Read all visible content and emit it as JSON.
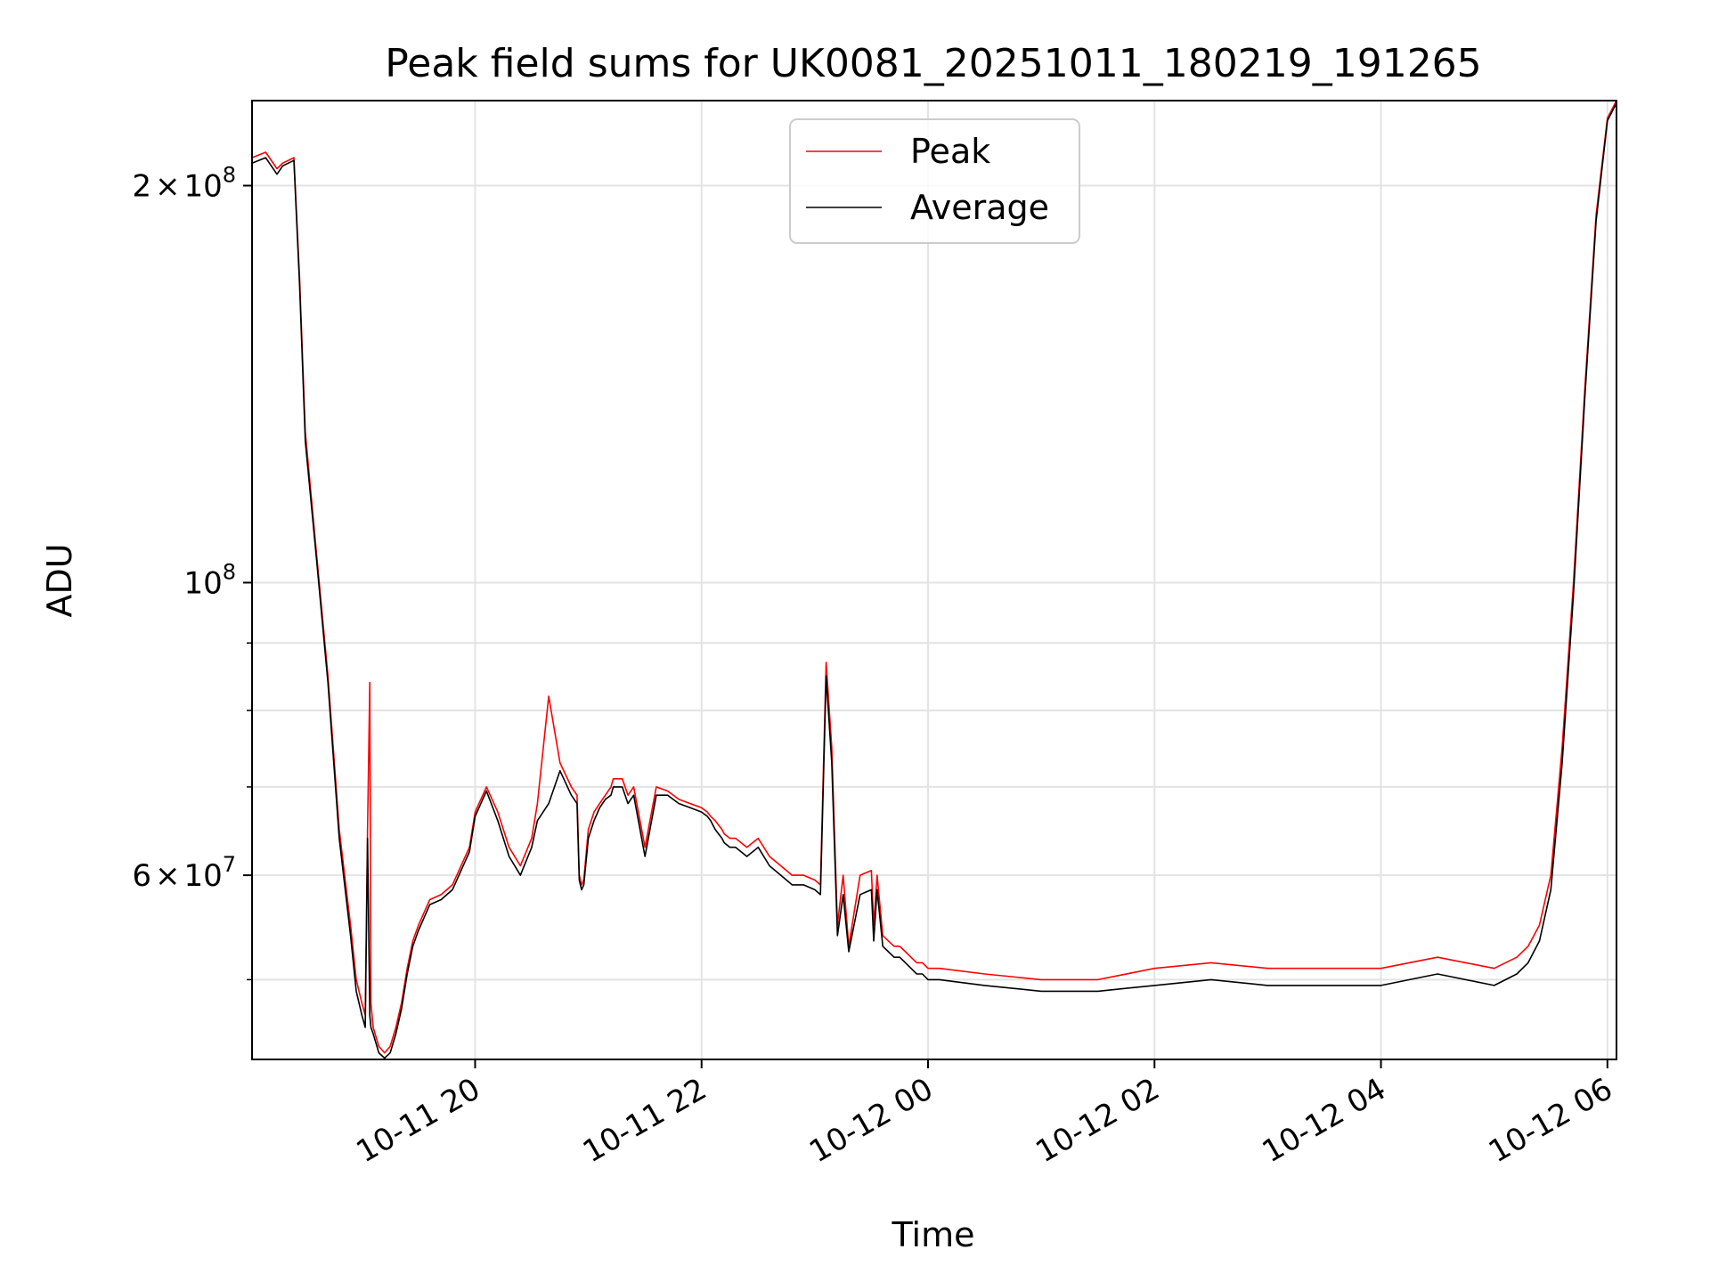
{
  "chart_data": {
    "type": "line",
    "title": "Peak field sums for UK0081_20251011_180219_191265",
    "xlabel": "Time",
    "ylabel": "ADU",
    "yscale": "log",
    "ylim": [
      43500000,
      232000000
    ],
    "xlim_hours": [
      -1.97,
      10.08
    ],
    "x_unit": "hours since 10-11 20:00",
    "grid": true,
    "legend_position": "top-center",
    "x_ticks": [
      {
        "label": "10-11 20",
        "value": 0
      },
      {
        "label": "10-11 22",
        "value": 2
      },
      {
        "label": "10-12 00",
        "value": 4
      },
      {
        "label": "10-12 02",
        "value": 6
      },
      {
        "label": "10-12 04",
        "value": 8
      },
      {
        "label": "10-12 06",
        "value": 10
      }
    ],
    "y_major_ticks": [
      {
        "value": 200000000,
        "mantissa": "2",
        "exponent": "8",
        "kind": "coef"
      },
      {
        "value": 100000000,
        "mantissa": "",
        "exponent": "8",
        "kind": "pow"
      },
      {
        "value": 60000000,
        "mantissa": "6",
        "exponent": "7",
        "kind": "coef"
      }
    ],
    "y_minor_ticks": [
      50000000,
      70000000,
      80000000,
      90000000
    ],
    "times_label": "×",
    "tenbase": "10",
    "series": [
      {
        "name": "Peak",
        "color": "#ff0000",
        "x": [
          -1.97,
          -1.85,
          -1.75,
          -1.7,
          -1.6,
          -1.55,
          -1.5,
          -1.4,
          -1.3,
          -1.2,
          -1.1,
          -1.05,
          -1.0,
          -0.97,
          -0.95,
          -0.93,
          -0.92,
          -0.9,
          -0.85,
          -0.8,
          -0.75,
          -0.7,
          -0.65,
          -0.6,
          -0.55,
          -0.5,
          -0.4,
          -0.3,
          -0.2,
          -0.05,
          0.0,
          0.1,
          0.2,
          0.3,
          0.4,
          0.5,
          0.55,
          0.65,
          0.75,
          0.85,
          0.9,
          0.92,
          0.94,
          0.96,
          1.0,
          1.05,
          1.1,
          1.15,
          1.2,
          1.22,
          1.25,
          1.3,
          1.35,
          1.4,
          1.5,
          1.6,
          1.7,
          1.8,
          1.9,
          2.0,
          2.05,
          2.08,
          2.12,
          2.15,
          2.18,
          2.2,
          2.25,
          2.3,
          2.4,
          2.5,
          2.6,
          2.7,
          2.8,
          2.9,
          3.0,
          3.05,
          3.1,
          3.15,
          3.2,
          3.25,
          3.3,
          3.4,
          3.5,
          3.52,
          3.55,
          3.6,
          3.65,
          3.7,
          3.75,
          3.8,
          3.85,
          3.9,
          3.95,
          4.0,
          4.05,
          4.1,
          4.5,
          5.0,
          5.5,
          6.0,
          6.5,
          7.0,
          7.5,
          8.0,
          8.5,
          9.0,
          9.2,
          9.3,
          9.4,
          9.5,
          9.6,
          9.7,
          9.8,
          9.9,
          10.0,
          10.08
        ],
        "values": [
          210000000,
          212000000,
          206000000,
          208000000,
          210000000,
          170000000,
          130000000,
          105000000,
          85000000,
          65000000,
          55000000,
          50000000,
          48000000,
          47000000,
          65000000,
          84000000,
          48000000,
          46000000,
          44500000,
          44000000,
          44500000,
          46000000,
          48000000,
          51000000,
          53500000,
          55000000,
          57500000,
          58000000,
          59000000,
          63000000,
          67000000,
          70000000,
          67000000,
          63000000,
          61000000,
          64000000,
          68000000,
          82000000,
          73000000,
          70000000,
          69000000,
          60000000,
          59000000,
          59500000,
          65000000,
          67000000,
          68000000,
          69000000,
          70000000,
          71000000,
          71000000,
          71000000,
          69000000,
          70000000,
          63000000,
          70000000,
          69500000,
          68500000,
          68000000,
          67500000,
          67000000,
          66500000,
          66000000,
          65500000,
          65000000,
          64500000,
          64000000,
          64000000,
          63000000,
          64000000,
          62000000,
          61000000,
          60000000,
          60000000,
          59500000,
          59000000,
          87000000,
          75000000,
          55000000,
          60000000,
          53000000,
          60000000,
          60500000,
          55000000,
          60000000,
          54000000,
          53500000,
          53000000,
          53000000,
          52500000,
          52000000,
          51500000,
          51500000,
          51000000,
          51000000,
          51000000,
          50500000,
          50000000,
          50000000,
          51000000,
          51500000,
          51000000,
          51000000,
          51000000,
          52000000,
          51000000,
          52000000,
          53000000,
          55000000,
          60000000,
          75000000,
          100000000,
          140000000,
          190000000,
          225000000,
          232000000
        ]
      },
      {
        "name": "Average",
        "color": "#000000",
        "x": [
          -1.97,
          -1.85,
          -1.75,
          -1.7,
          -1.6,
          -1.55,
          -1.5,
          -1.4,
          -1.3,
          -1.2,
          -1.1,
          -1.05,
          -1.0,
          -0.97,
          -0.95,
          -0.93,
          -0.92,
          -0.9,
          -0.85,
          -0.8,
          -0.75,
          -0.7,
          -0.65,
          -0.6,
          -0.55,
          -0.5,
          -0.4,
          -0.3,
          -0.2,
          -0.05,
          0.0,
          0.1,
          0.2,
          0.3,
          0.4,
          0.5,
          0.55,
          0.65,
          0.75,
          0.85,
          0.9,
          0.92,
          0.94,
          0.96,
          1.0,
          1.05,
          1.1,
          1.15,
          1.2,
          1.22,
          1.25,
          1.3,
          1.35,
          1.4,
          1.5,
          1.6,
          1.7,
          1.8,
          1.9,
          2.0,
          2.05,
          2.08,
          2.12,
          2.15,
          2.18,
          2.2,
          2.25,
          2.3,
          2.4,
          2.5,
          2.6,
          2.7,
          2.8,
          2.9,
          3.0,
          3.05,
          3.1,
          3.15,
          3.2,
          3.25,
          3.3,
          3.4,
          3.5,
          3.52,
          3.55,
          3.6,
          3.65,
          3.7,
          3.75,
          3.8,
          3.85,
          3.9,
          3.95,
          4.0,
          4.05,
          4.1,
          4.5,
          5.0,
          5.5,
          6.0,
          6.5,
          7.0,
          7.5,
          8.0,
          8.5,
          9.0,
          9.2,
          9.3,
          9.4,
          9.5,
          9.6,
          9.7,
          9.8,
          9.9,
          10.0,
          10.08
        ],
        "values": [
          208000000,
          210000000,
          204000000,
          207000000,
          209000000,
          168000000,
          128000000,
          104000000,
          84000000,
          64000000,
          54000000,
          49000000,
          47000000,
          46000000,
          64000000,
          47000000,
          46000000,
          45500000,
          44000000,
          43600000,
          44000000,
          45500000,
          47500000,
          50500000,
          53000000,
          54500000,
          57000000,
          57500000,
          58500000,
          62500000,
          66500000,
          69500000,
          66000000,
          62000000,
          60000000,
          63000000,
          66000000,
          68000000,
          72000000,
          69000000,
          68000000,
          59500000,
          58500000,
          59000000,
          64000000,
          66000000,
          67500000,
          68500000,
          69000000,
          70000000,
          70000000,
          70000000,
          68000000,
          69000000,
          62000000,
          69000000,
          69000000,
          68000000,
          67500000,
          67000000,
          66500000,
          66000000,
          65000000,
          64500000,
          64000000,
          63500000,
          63000000,
          63000000,
          62000000,
          63000000,
          61000000,
          60000000,
          59000000,
          59000000,
          58500000,
          58000000,
          85000000,
          73000000,
          54000000,
          58000000,
          52500000,
          58000000,
          58500000,
          53500000,
          58500000,
          53000000,
          52500000,
          52000000,
          52000000,
          51500000,
          51000000,
          50500000,
          50500000,
          50000000,
          50000000,
          50000000,
          49500000,
          49000000,
          49000000,
          49500000,
          50000000,
          49500000,
          49500000,
          49500000,
          50500000,
          49500000,
          50500000,
          51500000,
          53500000,
          58500000,
          73000000,
          98000000,
          138000000,
          188000000,
          224000000,
          231000000
        ]
      }
    ]
  }
}
